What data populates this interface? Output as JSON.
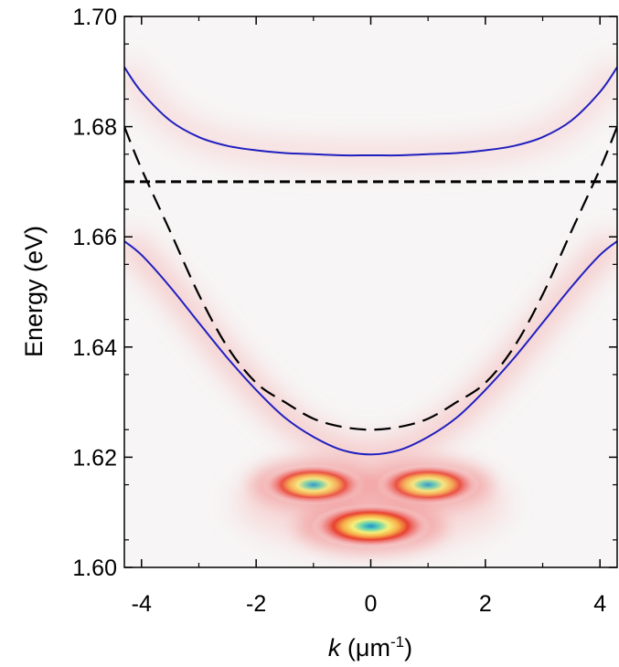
{
  "chart_data": {
    "type": "line",
    "xlabel": {
      "var": "k",
      "unit_prefix": " (μm",
      "unit_exp": "-1",
      "unit_suffix": ")"
    },
    "ylabel": "Energy (eV)",
    "xlim": [
      -4.3,
      4.3
    ],
    "ylim": [
      1.6,
      1.7
    ],
    "xticks": [
      -4,
      -2,
      0,
      2,
      4
    ],
    "xtick_labels": [
      "-4",
      "-2",
      "0",
      "2",
      "4"
    ],
    "yticks": [
      1.6,
      1.62,
      1.64,
      1.66,
      1.68,
      1.7
    ],
    "ytick_labels": [
      "1.60",
      "1.62",
      "1.64",
      "1.66",
      "1.68",
      "1.70"
    ],
    "grid": false,
    "legend": "none",
    "series": [
      {
        "style": "solid",
        "color": "#1f1fbf",
        "x": [
          -4.3,
          -4.0,
          -3.5,
          -3.0,
          -2.5,
          -2.0,
          -1.5,
          -1.0,
          -0.5,
          0.0,
          0.5,
          1.0,
          1.5,
          2.0,
          2.5,
          3.0,
          3.5,
          4.0,
          4.3
        ],
        "y": [
          1.6908,
          1.6863,
          1.6811,
          1.6781,
          1.6765,
          1.6757,
          1.6752,
          1.675,
          1.6748,
          1.6748,
          1.6748,
          1.675,
          1.6752,
          1.6757,
          1.6765,
          1.6781,
          1.6811,
          1.6863,
          1.6908
        ]
      },
      {
        "style": "solid",
        "color": "#1f1fbf",
        "x": [
          -4.3,
          -4.0,
          -3.5,
          -3.0,
          -2.5,
          -2.0,
          -1.5,
          -1.0,
          -0.5,
          0.0,
          0.5,
          1.0,
          1.5,
          2.0,
          2.5,
          3.0,
          3.5,
          4.0,
          4.3
        ],
        "y": [
          1.6592,
          1.6567,
          1.6509,
          1.6444,
          1.638,
          1.6322,
          1.6272,
          1.6237,
          1.6213,
          1.6205,
          1.6213,
          1.6237,
          1.6272,
          1.6322,
          1.638,
          1.6444,
          1.6509,
          1.6567,
          1.6592
        ]
      },
      {
        "style": "dashed",
        "color": "#000000",
        "x": [
          -4.3,
          -4.0,
          -3.5,
          -3.0,
          -2.5,
          -2.0,
          -1.5,
          -1.0,
          -0.5,
          0.0,
          0.5,
          1.0,
          1.5,
          2.0,
          2.5,
          3.0,
          3.5,
          4.0,
          4.3
        ],
        "y": [
          1.68,
          1.6723,
          1.661,
          1.6495,
          1.64,
          1.6335,
          1.63,
          1.627,
          1.6255,
          1.625,
          1.6255,
          1.627,
          1.63,
          1.6335,
          1.64,
          1.6495,
          1.661,
          1.6723,
          1.68
        ]
      },
      {
        "style": "dashed-thick",
        "color": "#000000",
        "x": [
          -4.3,
          4.3
        ],
        "y": [
          1.67,
          1.67
        ]
      }
    ],
    "heatmap_blobs": [
      {
        "x": -1.0,
        "y": 1.615,
        "rx": 0.9,
        "ry": 0.0024,
        "peak": 0.85
      },
      {
        "x": 1.0,
        "y": 1.615,
        "rx": 0.9,
        "ry": 0.0024,
        "peak": 0.85
      },
      {
        "x": 0.0,
        "y": 1.6075,
        "rx": 1.05,
        "ry": 0.0026,
        "peak": 1.0
      }
    ]
  }
}
